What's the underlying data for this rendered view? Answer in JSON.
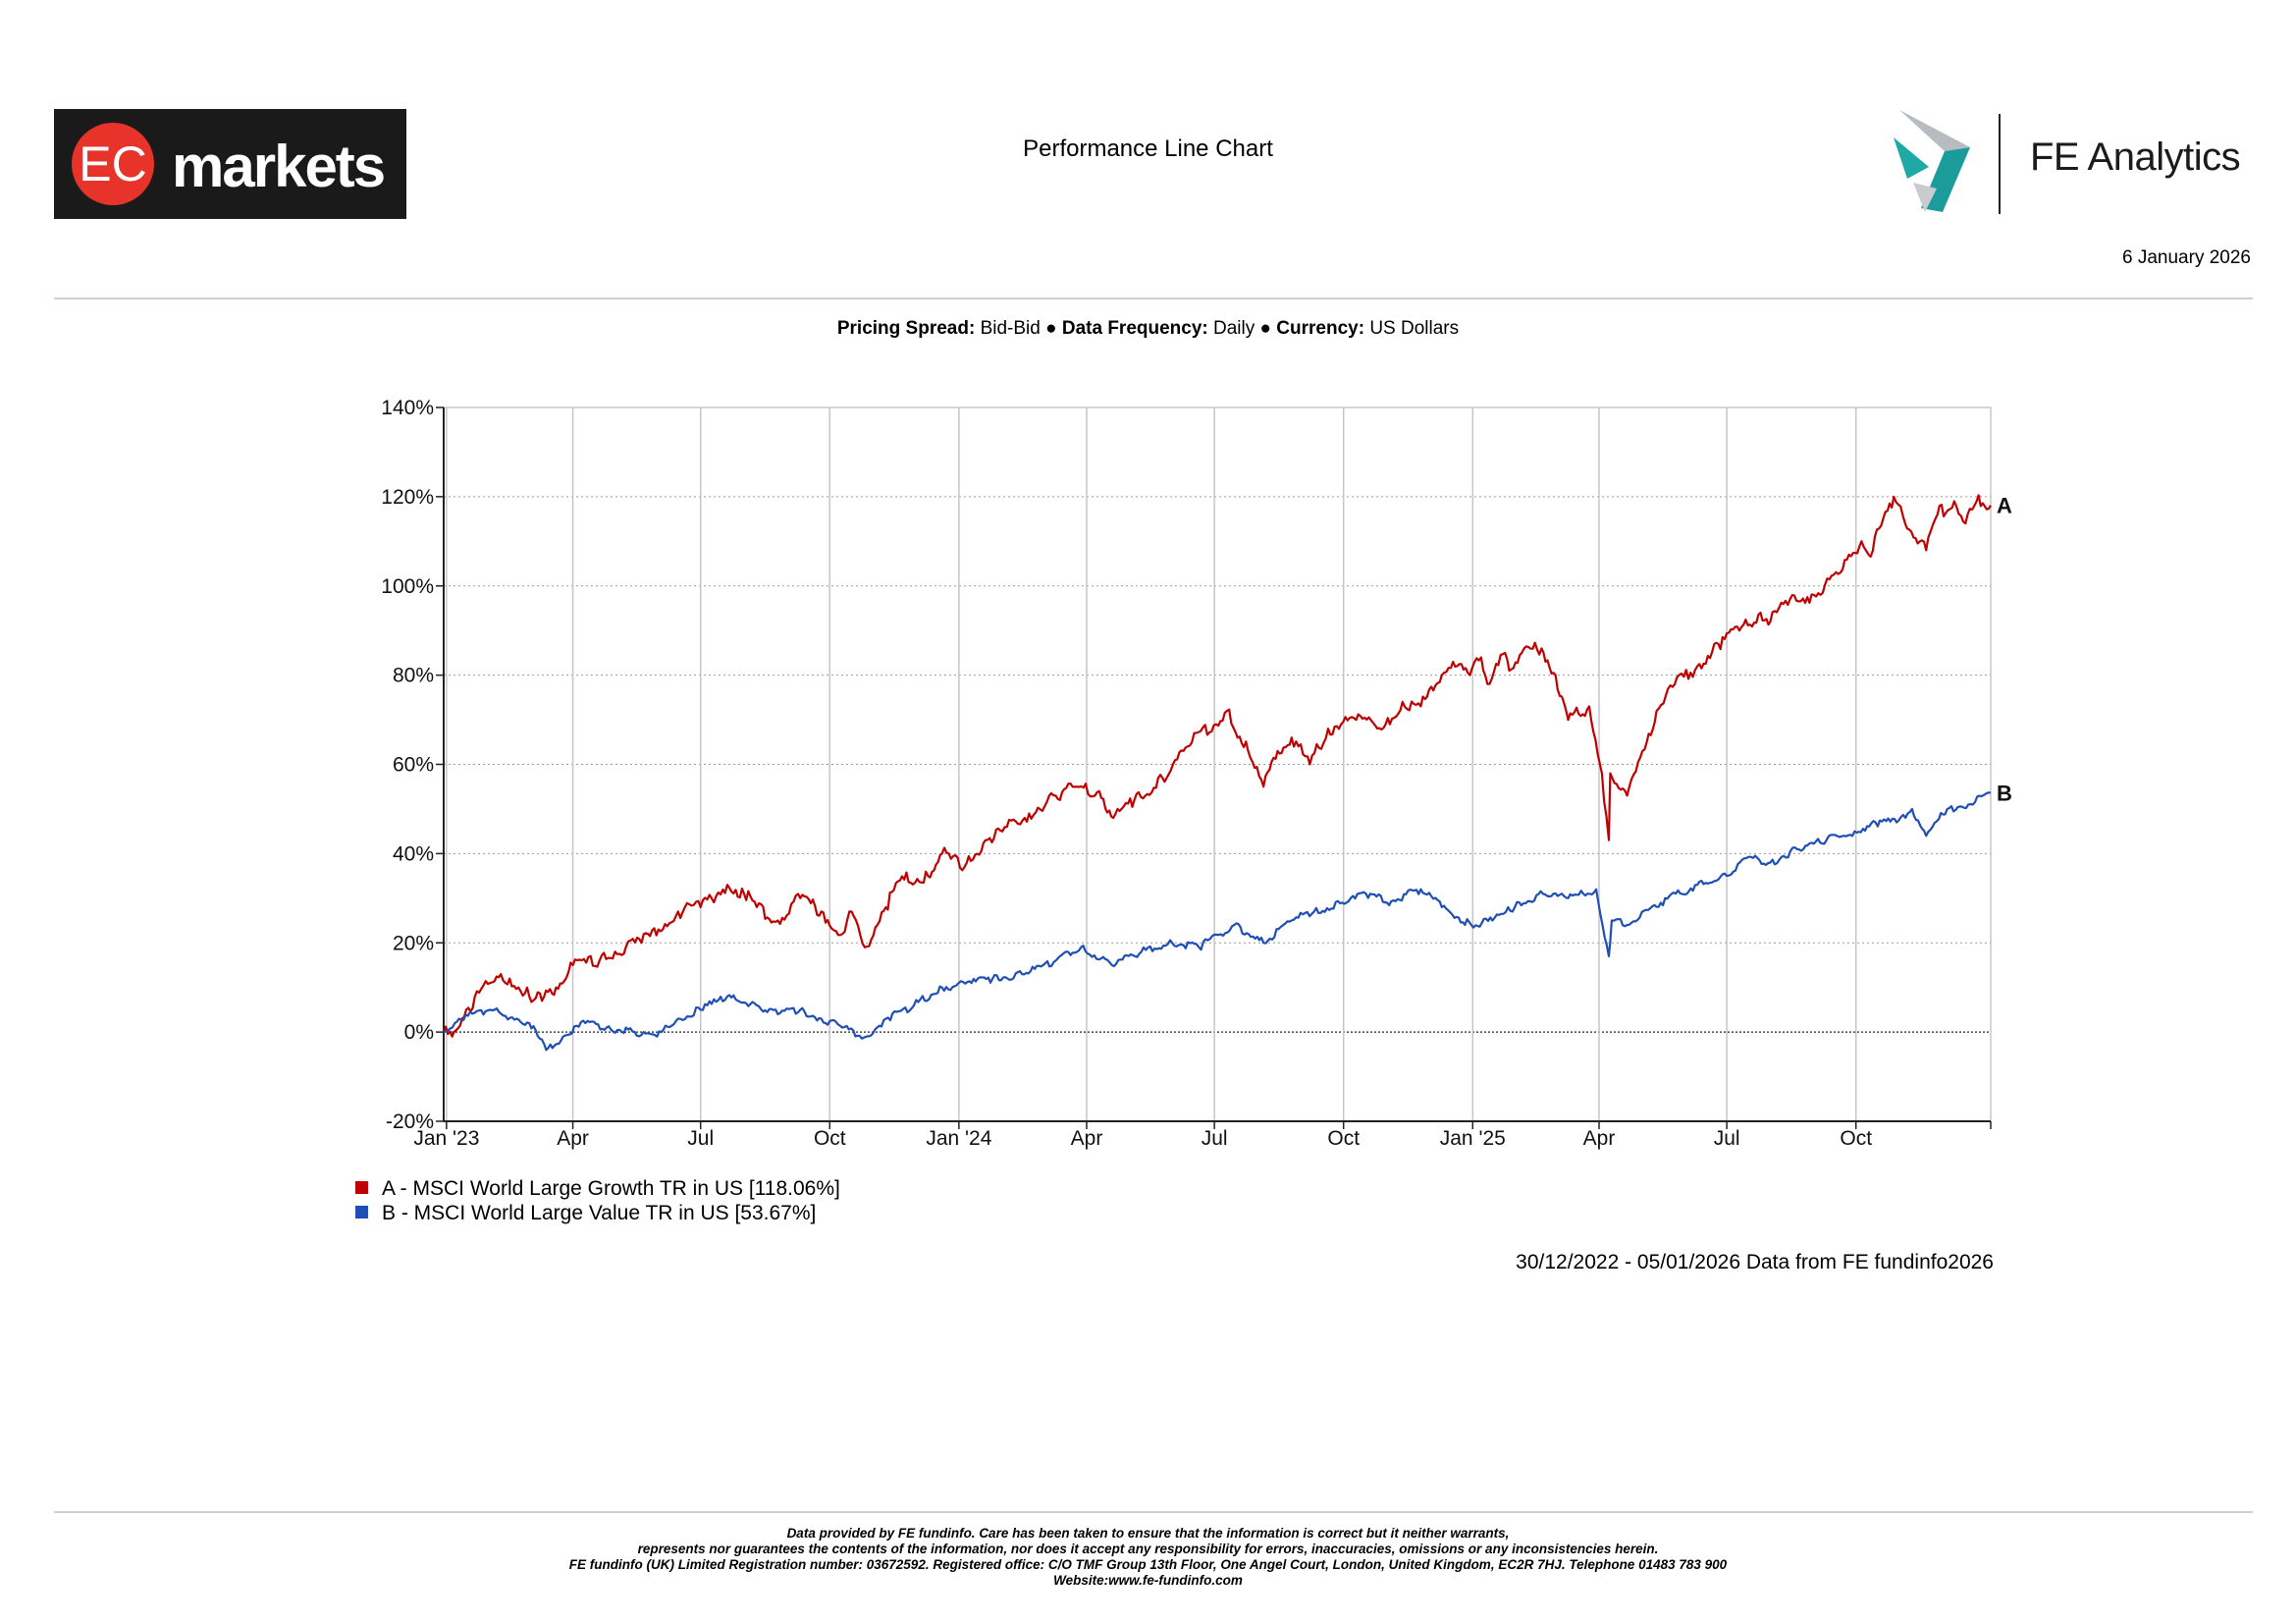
{
  "header": {
    "brand_left": "EC markets",
    "title": "Performance Line Chart",
    "brand_right": "FE Analytics",
    "date": "6 January 2026"
  },
  "settings": {
    "pricing_spread_label": "Pricing Spread:",
    "pricing_spread_value": "Bid-Bid",
    "data_frequency_label": "Data Frequency:",
    "data_frequency_value": "Daily",
    "currency_label": "Currency:",
    "currency_value": "US Dollars"
  },
  "chart_data": {
    "type": "line",
    "y_unit": "%",
    "ylim": [
      -20,
      140
    ],
    "y_ticks": [
      -20,
      0,
      20,
      40,
      60,
      80,
      100,
      120,
      140
    ],
    "y_tick_labels": [
      "-20%",
      "0%",
      "20%",
      "40%",
      "60%",
      "80%",
      "100%",
      "120%",
      "140%"
    ],
    "x_range": [
      "2022-12-30",
      "2026-01-05"
    ],
    "x_ticks": [
      {
        "date": "2023-01-01",
        "label": "Jan '23"
      },
      {
        "date": "2023-04-01",
        "label": "Apr"
      },
      {
        "date": "2023-07-01",
        "label": "Jul"
      },
      {
        "date": "2023-10-01",
        "label": "Oct"
      },
      {
        "date": "2024-01-01",
        "label": "Jan '24"
      },
      {
        "date": "2024-04-01",
        "label": "Apr"
      },
      {
        "date": "2024-07-01",
        "label": "Jul"
      },
      {
        "date": "2024-10-01",
        "label": "Oct"
      },
      {
        "date": "2025-01-01",
        "label": "Jan '25"
      },
      {
        "date": "2025-04-01",
        "label": "Apr"
      },
      {
        "date": "2025-07-01",
        "label": "Jul"
      },
      {
        "date": "2025-10-01",
        "label": "Oct"
      }
    ],
    "grid": true,
    "series": [
      {
        "id": "A",
        "name": "A - MSCI World Large Growth TR in US [118.06%]",
        "color": "#c00000",
        "points": [
          [
            "2022-12-30",
            0
          ],
          [
            "2023-01-05",
            -1
          ],
          [
            "2023-01-15",
            5
          ],
          [
            "2023-02-01",
            11
          ],
          [
            "2023-02-15",
            12
          ],
          [
            "2023-03-01",
            8
          ],
          [
            "2023-03-10",
            7
          ],
          [
            "2023-03-20",
            10
          ],
          [
            "2023-04-01",
            15
          ],
          [
            "2023-04-20",
            16
          ],
          [
            "2023-05-01",
            18
          ],
          [
            "2023-05-20",
            20
          ],
          [
            "2023-06-01",
            23
          ],
          [
            "2023-06-15",
            27
          ],
          [
            "2023-07-01",
            28
          ],
          [
            "2023-07-20",
            33
          ],
          [
            "2023-08-01",
            31
          ],
          [
            "2023-08-10",
            28
          ],
          [
            "2023-08-25",
            25
          ],
          [
            "2023-09-10",
            30
          ],
          [
            "2023-09-25",
            27
          ],
          [
            "2023-10-10",
            22
          ],
          [
            "2023-10-15",
            27
          ],
          [
            "2023-10-26",
            19
          ],
          [
            "2023-11-10",
            28
          ],
          [
            "2023-11-20",
            34
          ],
          [
            "2023-12-10",
            35
          ],
          [
            "2023-12-20",
            40
          ],
          [
            "2024-01-05",
            37
          ],
          [
            "2024-01-20",
            43
          ],
          [
            "2024-02-01",
            45
          ],
          [
            "2024-02-20",
            49
          ],
          [
            "2024-03-10",
            53
          ],
          [
            "2024-03-25",
            55
          ],
          [
            "2024-04-10",
            54
          ],
          [
            "2024-04-20",
            48
          ],
          [
            "2024-05-05",
            52
          ],
          [
            "2024-05-25",
            57
          ],
          [
            "2024-06-15",
            65
          ],
          [
            "2024-07-10",
            72
          ],
          [
            "2024-07-25",
            63
          ],
          [
            "2024-08-05",
            55
          ],
          [
            "2024-08-15",
            63
          ],
          [
            "2024-08-25",
            66
          ],
          [
            "2024-09-07",
            60
          ],
          [
            "2024-09-20",
            68
          ],
          [
            "2024-10-10",
            70
          ],
          [
            "2024-10-31",
            69
          ],
          [
            "2024-11-12",
            74
          ],
          [
            "2024-11-25",
            73
          ],
          [
            "2024-12-10",
            80
          ],
          [
            "2024-12-18",
            83
          ],
          [
            "2024-12-30",
            80
          ],
          [
            "2025-01-07",
            84
          ],
          [
            "2025-01-13",
            78
          ],
          [
            "2025-01-24",
            85
          ],
          [
            "2025-01-27",
            81
          ],
          [
            "2025-02-05",
            85
          ],
          [
            "2025-02-19",
            86
          ],
          [
            "2025-03-01",
            80
          ],
          [
            "2025-03-10",
            70
          ],
          [
            "2025-03-25",
            73
          ],
          [
            "2025-04-03",
            58
          ],
          [
            "2025-04-08",
            43
          ],
          [
            "2025-04-09",
            58
          ],
          [
            "2025-04-21",
            53
          ],
          [
            "2025-05-05",
            65
          ],
          [
            "2025-05-12",
            72
          ],
          [
            "2025-05-25",
            78
          ],
          [
            "2025-06-10",
            82
          ],
          [
            "2025-06-25",
            87
          ],
          [
            "2025-07-10",
            90
          ],
          [
            "2025-07-25",
            94
          ],
          [
            "2025-08-01",
            92
          ],
          [
            "2025-08-15",
            97
          ],
          [
            "2025-09-01",
            98
          ],
          [
            "2025-09-20",
            103
          ],
          [
            "2025-10-05",
            110
          ],
          [
            "2025-10-10",
            107
          ],
          [
            "2025-10-28",
            120
          ],
          [
            "2025-11-05",
            114
          ],
          [
            "2025-11-20",
            108
          ],
          [
            "2025-11-28",
            116
          ],
          [
            "2025-12-10",
            119
          ],
          [
            "2025-12-18",
            114
          ],
          [
            "2025-12-26",
            119
          ],
          [
            "2026-01-05",
            118.06
          ]
        ]
      },
      {
        "id": "B",
        "name": "B - MSCI World Large Value TR in US [53.67%]",
        "color": "#1f4fb4",
        "points": [
          [
            "2022-12-30",
            0
          ],
          [
            "2023-01-10",
            3
          ],
          [
            "2023-02-01",
            5
          ],
          [
            "2023-02-20",
            3
          ],
          [
            "2023-03-01",
            2
          ],
          [
            "2023-03-13",
            -4
          ],
          [
            "2023-03-25",
            -1
          ],
          [
            "2023-04-10",
            2
          ],
          [
            "2023-04-25",
            1
          ],
          [
            "2023-05-15",
            0
          ],
          [
            "2023-05-31",
            -1
          ],
          [
            "2023-06-15",
            3
          ],
          [
            "2023-07-01",
            5
          ],
          [
            "2023-07-20",
            8
          ],
          [
            "2023-08-10",
            6
          ],
          [
            "2023-08-25",
            4
          ],
          [
            "2023-09-10",
            5
          ],
          [
            "2023-09-25",
            3
          ],
          [
            "2023-10-10",
            1
          ],
          [
            "2023-10-27",
            -1
          ],
          [
            "2023-11-10",
            3
          ],
          [
            "2023-11-30",
            6
          ],
          [
            "2023-12-20",
            10
          ],
          [
            "2024-01-10",
            11
          ],
          [
            "2024-01-25",
            12
          ],
          [
            "2024-02-15",
            13
          ],
          [
            "2024-03-10",
            16
          ],
          [
            "2024-03-28",
            19
          ],
          [
            "2024-04-19",
            15
          ],
          [
            "2024-05-10",
            18
          ],
          [
            "2024-06-01",
            20
          ],
          [
            "2024-06-20",
            19
          ],
          [
            "2024-07-15",
            24
          ],
          [
            "2024-08-05",
            20
          ],
          [
            "2024-08-25",
            25
          ],
          [
            "2024-09-10",
            27
          ],
          [
            "2024-09-30",
            29
          ],
          [
            "2024-10-20",
            31
          ],
          [
            "2024-11-01",
            29
          ],
          [
            "2024-11-25",
            32
          ],
          [
            "2024-12-10",
            28
          ],
          [
            "2024-12-31",
            24
          ],
          [
            "2025-01-15",
            25
          ],
          [
            "2025-01-31",
            28
          ],
          [
            "2025-02-20",
            31
          ],
          [
            "2025-03-10",
            30
          ],
          [
            "2025-03-30",
            32
          ],
          [
            "2025-04-08",
            17
          ],
          [
            "2025-04-10",
            25
          ],
          [
            "2025-04-21",
            24
          ],
          [
            "2025-05-15",
            29
          ],
          [
            "2025-06-10",
            33
          ],
          [
            "2025-07-01",
            35
          ],
          [
            "2025-07-15",
            39
          ],
          [
            "2025-08-01",
            38
          ],
          [
            "2025-08-20",
            41
          ],
          [
            "2025-09-10",
            43
          ],
          [
            "2025-09-30",
            45
          ],
          [
            "2025-10-15",
            47
          ],
          [
            "2025-10-30",
            47
          ],
          [
            "2025-11-10",
            50
          ],
          [
            "2025-11-20",
            44
          ],
          [
            "2025-12-05",
            50
          ],
          [
            "2025-12-20",
            51
          ],
          [
            "2026-01-05",
            53.67
          ]
        ]
      }
    ]
  },
  "range_note": "30/12/2022 - 05/01/2026 Data from FE fundinfo2026",
  "footer": {
    "line1": "Data provided by FE fundinfo. Care has been taken to ensure that the information is correct but it neither warrants,",
    "line2": "represents nor guarantees the contents of the information, nor does it accept any responsibility for errors, inaccuracies, omissions or any inconsistencies herein.",
    "line3": "FE fundinfo (UK) Limited Registration number: 03672592. Registered office: C/O TMF Group 13th Floor, One Angel Court, London, United Kingdom, EC2R 7HJ. Telephone 01483 783 900",
    "line4": "Website:www.fe-fundinfo.com"
  }
}
